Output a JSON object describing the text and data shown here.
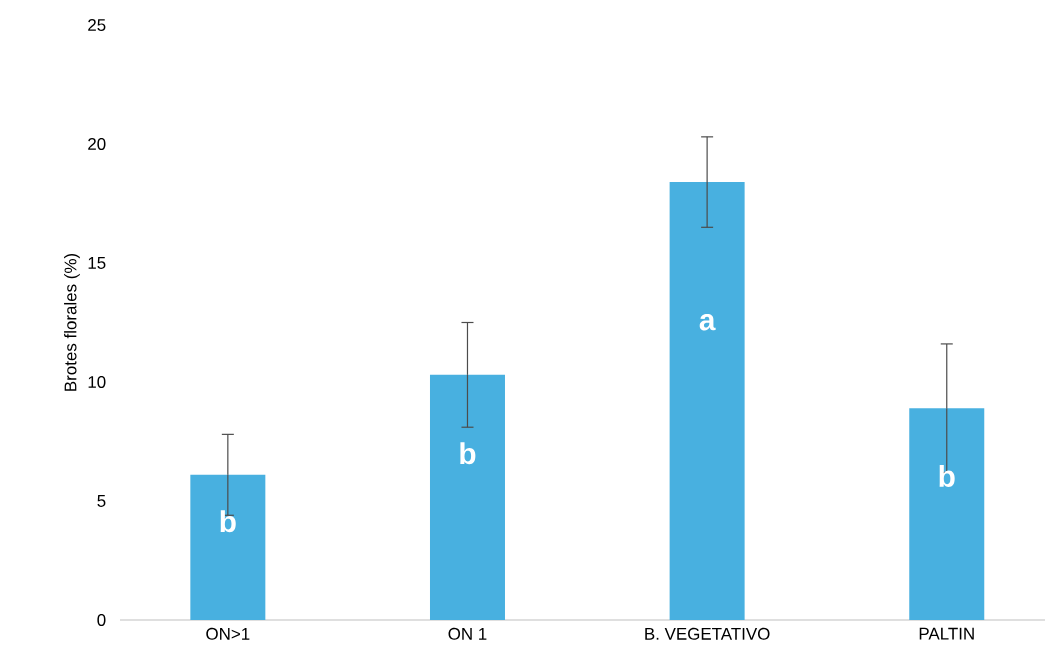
{
  "chart_data": {
    "type": "bar",
    "ylabel": "Brotes florales (%)",
    "categories": [
      "ON>1",
      "ON 1",
      "B. VEGETATIVO",
      "PALTIN"
    ],
    "values": [
      6.1,
      10.3,
      18.4,
      8.9
    ],
    "errors": [
      1.7,
      2.2,
      1.9,
      2.7
    ],
    "color": "#48b0e0",
    "value_labels": [
      "b",
      "b",
      "a",
      "b"
    ],
    "ylim": [
      0,
      25
    ],
    "yticks": [
      0,
      5,
      10,
      15,
      20,
      25
    ]
  }
}
